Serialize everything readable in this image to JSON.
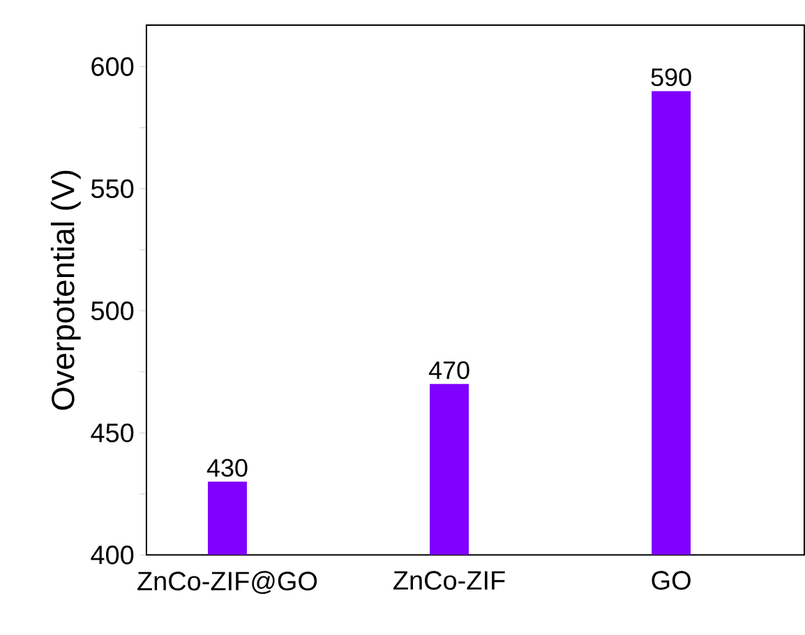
{
  "chart_data": {
    "type": "bar",
    "ylabel": "Overpotential (V)",
    "categories": [
      "ZnCo-ZIF@GO",
      "ZnCo-ZIF",
      "GO"
    ],
    "values": [
      430,
      470,
      590
    ],
    "color": "#8000ff",
    "data_labels": true,
    "grid": false,
    "ylim": [
      400,
      617
    ],
    "yticks": [
      400,
      {
        "value": 425,
        "label": null
      },
      450,
      {
        "value": 475,
        "label": null
      },
      500,
      {
        "value": 525,
        "label": null
      },
      550,
      {
        "value": 575,
        "label": null
      },
      600
    ]
  }
}
